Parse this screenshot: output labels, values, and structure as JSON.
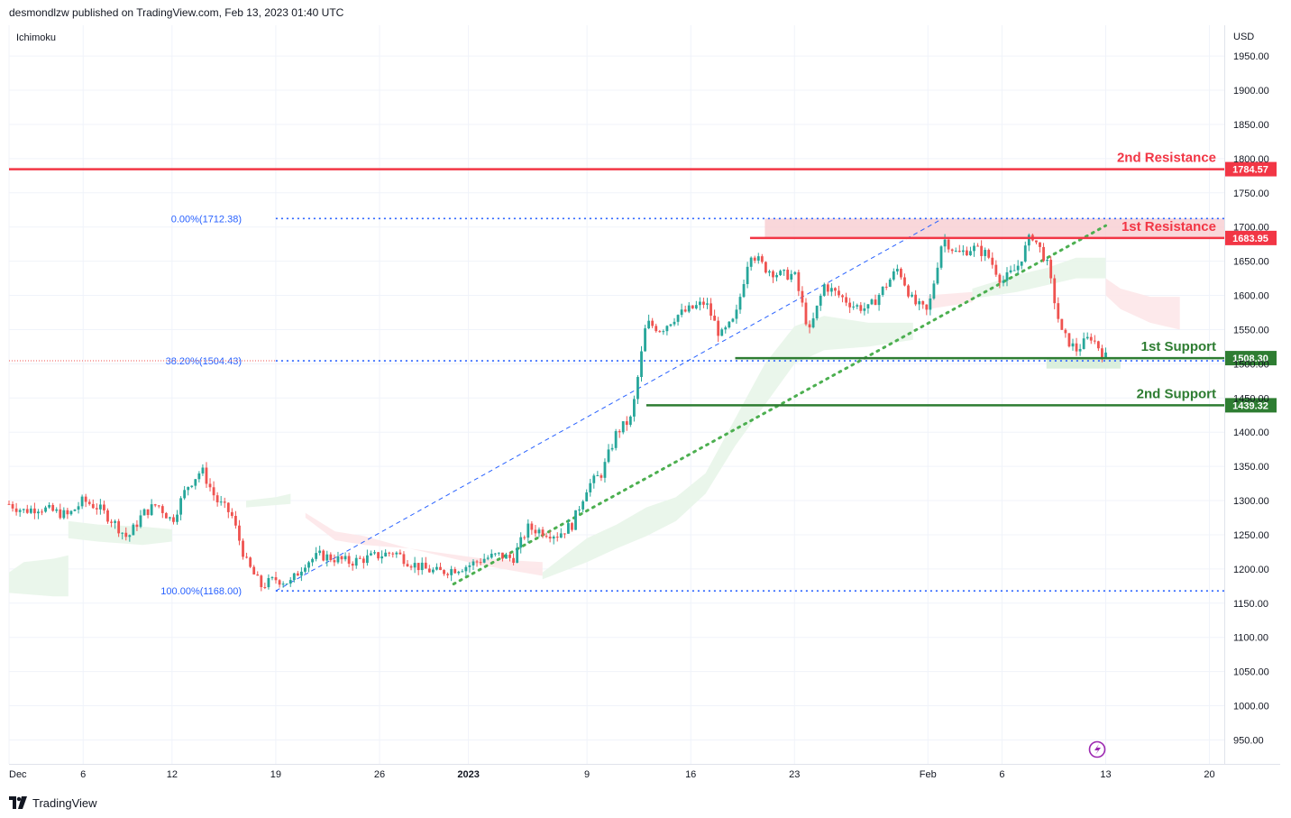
{
  "header": {
    "publisher": "desmondlzw published on TradingView.com, Feb 13, 2023 01:40 UTC"
  },
  "footer": {
    "brand": "TradingView",
    "logo_icon": "tradingview-logo-icon"
  },
  "colors": {
    "up": "#26a69a",
    "down": "#ef5350",
    "resistance": "#f23645",
    "support": "#2e7d32",
    "fib": "#2962ff",
    "trendline": "#4caf50",
    "cloud_bull": "#e8f5e9",
    "cloud_bear": "#fde7e9",
    "resistance_zone": "#f8cdd1",
    "support_zone": "#d6edd8",
    "grid": "#f0f3fa"
  },
  "chart_data": {
    "type": "candlestick",
    "indicator": "Ichimoku",
    "currency": "USD",
    "y_ticks": [
      1950,
      1900,
      1850,
      1800,
      1750,
      1700,
      1650,
      1600,
      1550,
      1500,
      1450,
      1400,
      1350,
      1300,
      1250,
      1200,
      1150,
      1100,
      1050,
      1000,
      950
    ],
    "y_tick_labels": [
      "1950.00",
      "1900.00",
      "1850.00",
      "1800.00",
      "1750.00",
      "1700.00",
      "1650.00",
      "1600.00",
      "1550.00",
      "1500.00",
      "1450.00",
      "1400.00",
      "1350.00",
      "1300.00",
      "1250.00",
      "1200.00",
      "1150.00",
      "1100.00",
      "1050.00",
      "1000.00",
      "950.00"
    ],
    "ylim": [
      915,
      1995
    ],
    "x_ticks": [
      {
        "label": "Dec",
        "date": "2022-12-01"
      },
      {
        "label": "6",
        "date": "2022-12-06"
      },
      {
        "label": "12",
        "date": "2022-12-12"
      },
      {
        "label": "19",
        "date": "2022-12-19"
      },
      {
        "label": "26",
        "date": "2022-12-26"
      },
      {
        "label": "2023",
        "date": "2023-01-01"
      },
      {
        "label": "9",
        "date": "2023-01-09"
      },
      {
        "label": "16",
        "date": "2023-01-16"
      },
      {
        "label": "23",
        "date": "2023-01-23"
      },
      {
        "label": "Feb",
        "date": "2023-02-01"
      },
      {
        "label": "6",
        "date": "2023-02-06"
      },
      {
        "label": "13",
        "date": "2023-02-13"
      },
      {
        "label": "20",
        "date": "2023-02-20"
      }
    ],
    "xlim": [
      "2022-12-01",
      "2023-02-21"
    ],
    "close_path": [
      [
        "2022-12-01",
        1295
      ],
      [
        "2022-12-02",
        1285
      ],
      [
        "2022-12-03",
        1290
      ],
      [
        "2022-12-05",
        1278
      ],
      [
        "2022-12-06",
        1300
      ],
      [
        "2022-12-07",
        1290
      ],
      [
        "2022-12-08",
        1270
      ],
      [
        "2022-12-09",
        1245
      ],
      [
        "2022-12-10",
        1280
      ],
      [
        "2022-12-11",
        1295
      ],
      [
        "2022-12-12",
        1270
      ],
      [
        "2022-12-13",
        1320
      ],
      [
        "2022-12-14",
        1345
      ],
      [
        "2022-12-15",
        1300
      ],
      [
        "2022-12-16",
        1280
      ],
      [
        "2022-12-17",
        1210
      ],
      [
        "2022-12-18",
        1175
      ],
      [
        "2022-12-19",
        1185
      ],
      [
        "2022-12-20",
        1180
      ],
      [
        "2022-12-21",
        1210
      ],
      [
        "2022-12-22",
        1220
      ],
      [
        "2022-12-23",
        1215
      ],
      [
        "2022-12-24",
        1210
      ],
      [
        "2022-12-26",
        1220
      ],
      [
        "2022-12-27",
        1225
      ],
      [
        "2022-12-28",
        1210
      ],
      [
        "2022-12-29",
        1200
      ],
      [
        "2022-12-30",
        1195
      ],
      [
        "2023-01-01",
        1205
      ],
      [
        "2023-01-02",
        1215
      ],
      [
        "2023-01-03",
        1220
      ],
      [
        "2023-01-04",
        1215
      ],
      [
        "2023-01-05",
        1260
      ],
      [
        "2023-01-06",
        1255
      ],
      [
        "2023-01-07",
        1250
      ],
      [
        "2023-01-08",
        1265
      ],
      [
        "2023-01-09",
        1320
      ],
      [
        "2023-01-10",
        1340
      ],
      [
        "2023-01-11",
        1400
      ],
      [
        "2023-01-12",
        1420
      ],
      [
        "2023-01-13",
        1560
      ],
      [
        "2023-01-14",
        1550
      ],
      [
        "2023-01-15",
        1570
      ],
      [
        "2023-01-16",
        1580
      ],
      [
        "2023-01-17",
        1590
      ],
      [
        "2023-01-18",
        1540
      ],
      [
        "2023-01-19",
        1565
      ],
      [
        "2023-01-20",
        1665
      ],
      [
        "2023-01-21",
        1640
      ],
      [
        "2023-01-22",
        1630
      ],
      [
        "2023-01-23",
        1630
      ],
      [
        "2023-01-24",
        1545
      ],
      [
        "2023-01-25",
        1615
      ],
      [
        "2023-01-26",
        1600
      ],
      [
        "2023-01-27",
        1585
      ],
      [
        "2023-01-28",
        1580
      ],
      [
        "2023-01-30",
        1640
      ],
      [
        "2023-01-31",
        1590
      ],
      [
        "2023-02-01",
        1575
      ],
      [
        "2023-02-02",
        1685
      ],
      [
        "2023-02-03",
        1660
      ],
      [
        "2023-02-04",
        1670
      ],
      [
        "2023-02-05",
        1660
      ],
      [
        "2023-02-06",
        1620
      ],
      [
        "2023-02-07",
        1640
      ],
      [
        "2023-02-08",
        1690
      ],
      [
        "2023-02-09",
        1650
      ],
      [
        "2023-02-10",
        1545
      ],
      [
        "2023-02-11",
        1520
      ],
      [
        "2023-02-12",
        1540
      ],
      [
        "2023-02-13",
        1510
      ]
    ],
    "ichimoku_cloud": [
      {
        "type": "bull",
        "points": [
          [
            "2022-12-01",
            1195
          ],
          [
            "2022-12-02",
            1210
          ],
          [
            "2022-12-04",
            1215
          ],
          [
            "2022-12-05",
            1220
          ],
          [
            "2022-12-05",
            1160
          ],
          [
            "2022-12-04",
            1160
          ],
          [
            "2022-12-01",
            1165
          ]
        ]
      },
      {
        "type": "bull",
        "points": [
          [
            "2022-12-05",
            1270
          ],
          [
            "2022-12-07",
            1265
          ],
          [
            "2022-12-10",
            1262
          ],
          [
            "2022-12-12",
            1258
          ],
          [
            "2022-12-12",
            1240
          ],
          [
            "2022-12-10",
            1235
          ],
          [
            "2022-12-07",
            1240
          ],
          [
            "2022-12-05",
            1245
          ]
        ]
      },
      {
        "type": "bull",
        "points": [
          [
            "2022-12-17",
            1300
          ],
          [
            "2022-12-19",
            1305
          ],
          [
            "2022-12-20",
            1310
          ],
          [
            "2022-12-20",
            1295
          ],
          [
            "2022-12-17",
            1290
          ]
        ]
      },
      {
        "type": "bear",
        "points": [
          [
            "2022-12-21",
            1282
          ],
          [
            "2022-12-23",
            1255
          ],
          [
            "2022-12-25",
            1248
          ],
          [
            "2022-12-28",
            1230
          ],
          [
            "2023-01-02",
            1205
          ],
          [
            "2023-01-06",
            1190
          ],
          [
            "2023-01-06",
            1210
          ],
          [
            "2023-01-02",
            1215
          ],
          [
            "2022-12-28",
            1230
          ],
          [
            "2022-12-25",
            1235
          ],
          [
            "2022-12-23",
            1242
          ],
          [
            "2022-12-21",
            1275
          ]
        ]
      },
      {
        "type": "bull",
        "points": [
          [
            "2023-01-06",
            1195
          ],
          [
            "2023-01-09",
            1245
          ],
          [
            "2023-01-11",
            1265
          ],
          [
            "2023-01-13",
            1290
          ],
          [
            "2023-01-15",
            1305
          ],
          [
            "2023-01-17",
            1340
          ],
          [
            "2023-01-19",
            1420
          ],
          [
            "2023-01-21",
            1500
          ],
          [
            "2023-01-23",
            1555
          ],
          [
            "2023-01-25",
            1570
          ],
          [
            "2023-01-28",
            1560
          ],
          [
            "2023-01-31",
            1560
          ],
          [
            "2023-01-31",
            1535
          ],
          [
            "2023-01-28",
            1525
          ],
          [
            "2023-01-25",
            1520
          ],
          [
            "2023-01-23",
            1500
          ],
          [
            "2023-01-21",
            1440
          ],
          [
            "2023-01-19",
            1380
          ],
          [
            "2023-01-17",
            1310
          ],
          [
            "2023-01-15",
            1270
          ],
          [
            "2023-01-13",
            1248
          ],
          [
            "2023-01-11",
            1230
          ],
          [
            "2023-01-09",
            1210
          ],
          [
            "2023-01-06",
            1185
          ]
        ]
      },
      {
        "type": "bear",
        "points": [
          [
            "2023-02-01",
            1600
          ],
          [
            "2023-02-04",
            1605
          ],
          [
            "2023-02-04",
            1590
          ],
          [
            "2023-02-01",
            1580
          ]
        ]
      },
      {
        "type": "bull",
        "points": [
          [
            "2023-02-04",
            1610
          ],
          [
            "2023-02-07",
            1630
          ],
          [
            "2023-02-09",
            1640
          ],
          [
            "2023-02-11",
            1655
          ],
          [
            "2023-02-13",
            1655
          ],
          [
            "2023-02-13",
            1625
          ],
          [
            "2023-02-11",
            1625
          ],
          [
            "2023-02-09",
            1615
          ],
          [
            "2023-02-07",
            1605
          ],
          [
            "2023-02-04",
            1595
          ]
        ]
      },
      {
        "type": "bear",
        "points": [
          [
            "2023-02-13",
            1625
          ],
          [
            "2023-02-14",
            1610
          ],
          [
            "2023-02-16",
            1598
          ],
          [
            "2023-02-18",
            1598
          ],
          [
            "2023-02-18",
            1550
          ],
          [
            "2023-02-16",
            1560
          ],
          [
            "2023-02-14",
            1580
          ],
          [
            "2023-02-13",
            1600
          ]
        ]
      }
    ],
    "resistance_zone": {
      "from": "2023-01-21",
      "to": "2023-02-21",
      "top": 1712.38,
      "bottom": 1683.95
    },
    "support_zone": {
      "from": "2023-02-09",
      "to": "2023-02-14",
      "top": 1508.3,
      "bottom": 1493
    },
    "levels": [
      {
        "name": "2nd Resistance",
        "value": 1784.57,
        "label": "1784.57",
        "kind": "resistance",
        "from": "2022-12-01"
      },
      {
        "name": "1st Resistance",
        "value": 1683.95,
        "label": "1683.95",
        "kind": "resistance",
        "from": "2023-01-20"
      },
      {
        "name": "1st Support",
        "value": 1508.3,
        "label": "1508.30",
        "kind": "support",
        "from": "2023-01-19"
      },
      {
        "name": "2nd Support",
        "value": 1439.32,
        "label": "1439.32",
        "kind": "support",
        "from": "2023-01-13"
      }
    ],
    "fibonacci": [
      {
        "label": "0.00%(1712.38)",
        "value": 1712.38,
        "from": "2022-12-19"
      },
      {
        "label": "38.20%(1504.43)",
        "value": 1504.43,
        "from": "2022-12-19"
      },
      {
        "label": "100.00%(1168.00)",
        "value": 1168.0,
        "from": "2022-12-19"
      }
    ],
    "fib_trendline": {
      "from": [
        "2022-12-19",
        1168.0
      ],
      "to": [
        "2023-02-02",
        1712.38
      ]
    },
    "uptrend_line": {
      "from": [
        "2022-12-31",
        1178
      ],
      "to": [
        "2023-02-13",
        1702
      ]
    },
    "current_price": 1504.43
  }
}
